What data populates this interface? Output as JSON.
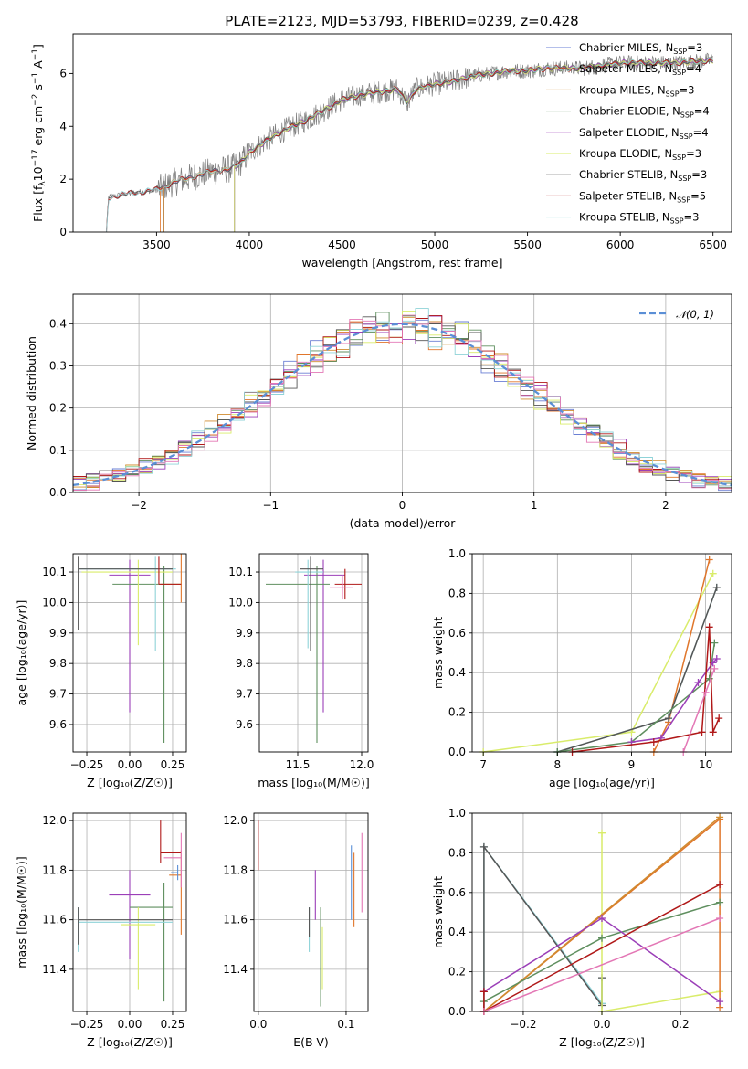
{
  "figure_title": "PLATE=2123, MJD=53793, FIBERID=0239, z=0.428",
  "colors": {
    "chabrier_miles": "#6a7fd4",
    "salpeter_miles": "#e0762b",
    "kroupa_miles": "#d08b2f",
    "chabrier_elodie": "#5f8f5f",
    "salpeter_elodie": "#9b3fb8",
    "kroupa_elodie": "#d9ec6a",
    "chabrier_stelib": "#555555",
    "salpeter_stelib": "#b01818",
    "kroupa_stelib": "#8fd3d8",
    "data": "#7f7f7f",
    "gauss": "#5b8fd6",
    "pink": "#e377b5",
    "orange2": "#ed7d31"
  },
  "chart_data": [
    {
      "id": "spectrum",
      "type": "line",
      "xlabel": "wavelength [Angstrom, rest frame]",
      "ylabel_parts": [
        "Flux [f",
        "λ",
        "10",
        "−17",
        " erg cm",
        "−2",
        " s",
        "−1",
        " A",
        "−1",
        "]"
      ],
      "xlim": [
        3050,
        6600
      ],
      "ylim": [
        0,
        7.5
      ],
      "xticks": [
        3500,
        4000,
        4500,
        5000,
        5500,
        6000,
        6500
      ],
      "yticks": [
        0,
        2,
        4,
        6
      ],
      "legend_position": "top-right",
      "legend": [
        {
          "label": "Chabrier MILES, N",
          "sub": "SSP",
          "suffix": "=3",
          "color_key": "chabrier_miles"
        },
        {
          "label": "Salpeter MILES, N",
          "sub": "SSP",
          "suffix": "=4",
          "color_key": "salpeter_miles"
        },
        {
          "label": "Kroupa MILES, N",
          "sub": "SSP",
          "suffix": "=3",
          "color_key": "kroupa_miles"
        },
        {
          "label": "Chabrier ELODIE, N",
          "sub": "SSP",
          "suffix": "=4",
          "color_key": "chabrier_elodie"
        },
        {
          "label": "Salpeter ELODIE, N",
          "sub": "SSP",
          "suffix": "=4",
          "color_key": "salpeter_elodie"
        },
        {
          "label": "Kroupa ELODIE, N",
          "sub": "SSP",
          "suffix": "=3",
          "color_key": "kroupa_elodie"
        },
        {
          "label": "Chabrier STELIB, N",
          "sub": "SSP",
          "suffix": "=3",
          "color_key": "chabrier_stelib"
        },
        {
          "label": "Salpeter STELIB, N",
          "sub": "SSP",
          "suffix": "=5",
          "color_key": "salpeter_stelib"
        },
        {
          "label": "Kroupa STELIB, N",
          "sub": "SSP",
          "suffix": "=3",
          "color_key": "kroupa_stelib"
        }
      ],
      "data_envelope": [
        [
          3230,
          0
        ],
        [
          3240,
          1.3
        ],
        [
          3300,
          1.4
        ],
        [
          3400,
          1.5
        ],
        [
          3500,
          1.6
        ],
        [
          3600,
          1.9
        ],
        [
          3700,
          2.1
        ],
        [
          3800,
          2.3
        ],
        [
          3900,
          2.4
        ],
        [
          3950,
          2.6
        ],
        [
          4000,
          3.0
        ],
        [
          4100,
          3.5
        ],
        [
          4200,
          3.9
        ],
        [
          4300,
          4.2
        ],
        [
          4400,
          4.6
        ],
        [
          4500,
          5.0
        ],
        [
          4600,
          5.2
        ],
        [
          4700,
          5.3
        ],
        [
          4800,
          5.4
        ],
        [
          4850,
          4.9
        ],
        [
          4900,
          5.4
        ],
        [
          5000,
          5.6
        ],
        [
          5100,
          5.7
        ],
        [
          5200,
          5.9
        ],
        [
          5300,
          6.0
        ],
        [
          5400,
          6.1
        ],
        [
          5500,
          6.1
        ],
        [
          5600,
          6.2
        ],
        [
          5700,
          6.2
        ],
        [
          5800,
          6.2
        ],
        [
          5900,
          6.3
        ],
        [
          6000,
          6.4
        ],
        [
          6100,
          6.4
        ],
        [
          6200,
          6.4
        ],
        [
          6300,
          6.4
        ],
        [
          6400,
          6.45
        ],
        [
          6500,
          6.5
        ]
      ]
    },
    {
      "id": "residuals",
      "type": "histogram",
      "xlabel": "(data-model)/error",
      "ylabel": "Normed distribution",
      "xlim": [
        -2.5,
        2.5
      ],
      "ylim": [
        0,
        0.47
      ],
      "xticks": [
        -2,
        -1,
        0,
        1,
        2
      ],
      "yticks": [
        0.0,
        0.1,
        0.2,
        0.3,
        0.4
      ],
      "legend_position": "top-right",
      "legend": [
        {
          "label": "𝒩(0, 1)",
          "color_key": "gauss",
          "style": "dashed"
        }
      ],
      "bin_width": 0.1,
      "mean": 0,
      "sigma": 1
    },
    {
      "id": "age_vs_Z",
      "type": "errorbar",
      "xlabel": "Z [log₁₀(Z/Z☉)]",
      "ylabel": "age  [log₁₀(age/yr)]",
      "xlim": [
        -0.33,
        0.33
      ],
      "ylim": [
        9.51,
        10.16
      ],
      "xticks": [
        -0.25,
        0.0,
        0.25
      ],
      "xticklabels": [
        "−0.25",
        "0.00",
        "0.25"
      ],
      "yticks": [
        9.6,
        9.7,
        9.8,
        9.9,
        10.0,
        10.1
      ],
      "points": [
        {
          "x": 0.0,
          "y": 10.09,
          "xerr": [
            0.12,
            0.12
          ],
          "yerr": [
            0.45,
            0.05
          ],
          "color_key": "salpeter_elodie"
        },
        {
          "x": 0.2,
          "y": 10.06,
          "xerr": [
            0.3,
            0.1
          ],
          "yerr": [
            0.52,
            0.06
          ],
          "color_key": "chabrier_elodie"
        },
        {
          "x": 0.05,
          "y": 10.1,
          "xerr": [
            0.33,
            0.2
          ],
          "yerr": [
            0.24,
            0.04
          ],
          "color_key": "kroupa_elodie"
        },
        {
          "x": 0.15,
          "y": 10.11,
          "xerr": [
            0.44,
            0.12
          ],
          "yerr": [
            0.27,
            0.04
          ],
          "color_key": "kroupa_stelib"
        },
        {
          "x": -0.3,
          "y": 10.11,
          "xerr": [
            0.0,
            0.55
          ],
          "yerr": [
            0.2,
            0.04
          ],
          "color_key": "chabrier_stelib"
        },
        {
          "x": 0.3,
          "y": 10.06,
          "xerr": [
            0.12,
            0.0
          ],
          "yerr": [
            0.06,
            0.1
          ],
          "color_key": "salpeter_miles"
        },
        {
          "x": 0.17,
          "y": 10.06,
          "xerr": [
            0.0,
            0.13
          ],
          "yerr": [
            0.0,
            0.09
          ],
          "color_key": "salpeter_stelib"
        }
      ]
    },
    {
      "id": "age_vs_mass",
      "type": "errorbar",
      "xlabel": "mass [log₁₀(M/M☉)]",
      "xlim": [
        11.2,
        12.05
      ],
      "ylim": [
        9.51,
        10.16
      ],
      "xticks": [
        11.5,
        12.0
      ],
      "xticklabels": [
        "11.5",
        "12.0"
      ],
      "yticks": [
        9.6,
        9.7,
        9.8,
        9.9,
        10.0,
        10.1
      ],
      "points": [
        {
          "x": 11.7,
          "y": 10.09,
          "xerr": [
            0.15,
            0.17
          ],
          "yerr": [
            0.45,
            0.05
          ],
          "color_key": "salpeter_elodie"
        },
        {
          "x": 11.65,
          "y": 10.06,
          "xerr": [
            0.4,
            0.1
          ],
          "yerr": [
            0.52,
            0.06
          ],
          "color_key": "chabrier_elodie"
        },
        {
          "x": 11.58,
          "y": 10.1,
          "xerr": [
            0.1,
            0.12
          ],
          "yerr": [
            0.25,
            0.04
          ],
          "color_key": "kroupa_stelib"
        },
        {
          "x": 11.6,
          "y": 10.11,
          "xerr": [
            0.08,
            0.1
          ],
          "yerr": [
            0.27,
            0.04
          ],
          "color_key": "chabrier_stelib"
        },
        {
          "x": 11.87,
          "y": 10.06,
          "xerr": [
            0.08,
            0.13
          ],
          "yerr": [
            0.05,
            0.05
          ],
          "color_key": "salpeter_stelib"
        },
        {
          "x": 11.85,
          "y": 10.05,
          "xerr": [
            0.1,
            0.08
          ],
          "yerr": [
            0.04,
            0.04
          ],
          "color_key": "pink"
        }
      ]
    },
    {
      "id": "weight_vs_age",
      "type": "line",
      "xlabel": "age  [log₁₀(age/yr)]",
      "ylabel": "mass weight",
      "xlim": [
        6.85,
        10.35
      ],
      "ylim": [
        0,
        1.0
      ],
      "xticks": [
        7,
        8,
        9,
        10
      ],
      "yticks": [
        0.0,
        0.2,
        0.4,
        0.6,
        0.8,
        1.0
      ],
      "series": [
        {
          "color_key": "kroupa_elodie",
          "x": [
            7.0,
            9.0,
            10.1
          ],
          "y": [
            0.0,
            0.1,
            0.9
          ]
        },
        {
          "color_key": "salpeter_miles",
          "x": [
            9.3,
            9.5,
            10.05
          ],
          "y": [
            0.0,
            0.15,
            0.97
          ]
        },
        {
          "color_key": "kroupa_stelib",
          "x": [
            8.0,
            9.5,
            10.15
          ],
          "y": [
            0.0,
            0.17,
            0.83
          ]
        },
        {
          "color_key": "chabrier_stelib",
          "x": [
            8.0,
            9.5,
            10.15
          ],
          "y": [
            0.0,
            0.17,
            0.83
          ]
        },
        {
          "color_key": "chabrier_elodie",
          "x": [
            8.0,
            9.0,
            10.05,
            10.12
          ],
          "y": [
            0.0,
            0.05,
            0.37,
            0.55
          ]
        },
        {
          "color_key": "salpeter_elodie",
          "x": [
            9.0,
            9.4,
            9.9,
            10.1,
            10.15
          ],
          "y": [
            0.05,
            0.07,
            0.35,
            0.45,
            0.47
          ]
        },
        {
          "color_key": "salpeter_stelib",
          "x": [
            8.2,
            9.3,
            9.95,
            10.05,
            10.1,
            10.18
          ],
          "y": [
            0.0,
            0.05,
            0.1,
            0.63,
            0.1,
            0.17
          ]
        },
        {
          "color_key": "pink",
          "x": [
            9.7,
            10.0,
            10.12
          ],
          "y": [
            0.0,
            0.3,
            0.42
          ]
        }
      ]
    },
    {
      "id": "mass_vs_Z",
      "type": "errorbar",
      "xlabel": "Z [log₁₀(Z/Z☉)]",
      "ylabel": "mass [log₁₀(M/M☉)]",
      "xlim": [
        -0.33,
        0.33
      ],
      "ylim": [
        11.23,
        12.03
      ],
      "xticks": [
        -0.25,
        0.0,
        0.25
      ],
      "xticklabels": [
        "−0.25",
        "0.00",
        "0.25"
      ],
      "yticks": [
        11.4,
        11.6,
        11.8,
        12.0
      ],
      "points": [
        {
          "x": 0.0,
          "y": 11.7,
          "xerr": [
            0.12,
            0.12
          ],
          "yerr": [
            0.26,
            0.1
          ],
          "color_key": "salpeter_elodie"
        },
        {
          "x": 0.2,
          "y": 11.65,
          "xerr": [
            0.2,
            0.05
          ],
          "yerr": [
            0.38,
            0.1
          ],
          "color_key": "chabrier_elodie"
        },
        {
          "x": 0.05,
          "y": 11.58,
          "xerr": [
            0.1,
            0.1
          ],
          "yerr": [
            0.26,
            0.07
          ],
          "color_key": "kroupa_elodie"
        },
        {
          "x": -0.3,
          "y": 11.59,
          "xerr": [
            0.0,
            0.55
          ],
          "yerr": [
            0.12,
            0.06
          ],
          "color_key": "kroupa_stelib"
        },
        {
          "x": -0.3,
          "y": 11.6,
          "xerr": [
            0.0,
            0.55
          ],
          "yerr": [
            0.1,
            0.05
          ],
          "color_key": "chabrier_stelib"
        },
        {
          "x": 0.3,
          "y": 11.78,
          "xerr": [
            0.07,
            0.0
          ],
          "yerr": [
            0.24,
            0.1
          ],
          "color_key": "salpeter_miles"
        },
        {
          "x": 0.18,
          "y": 11.87,
          "xerr": [
            0.0,
            0.12
          ],
          "yerr": [
            0.04,
            0.13
          ],
          "color_key": "salpeter_stelib"
        },
        {
          "x": 0.3,
          "y": 11.85,
          "xerr": [
            0.1,
            0.0
          ],
          "yerr": [
            0.12,
            0.1
          ],
          "color_key": "pink"
        },
        {
          "x": 0.28,
          "y": 11.79,
          "xerr": [
            0.04,
            0.0
          ],
          "yerr": [
            0.03,
            0.03
          ],
          "color_key": "gauss"
        }
      ]
    },
    {
      "id": "mass_vs_ebv",
      "type": "errorbar",
      "xlabel": "E(B-V)",
      "xlim": [
        -0.005,
        0.125
      ],
      "ylim": [
        11.23,
        12.03
      ],
      "xticks": [
        0.0,
        0.1
      ],
      "xticklabels": [
        "0.0",
        "0.1"
      ],
      "yticks": [
        11.4,
        11.6,
        11.8,
        12.0
      ],
      "points": [
        {
          "x": 0.0,
          "y": 11.9,
          "xerr": [
            0,
            0
          ],
          "yerr": [
            0.1,
            0.1
          ],
          "color_key": "salpeter_stelib"
        },
        {
          "x": 0.065,
          "y": 11.7,
          "xerr": [
            0,
            0
          ],
          "yerr": [
            0.1,
            0.1
          ],
          "color_key": "salpeter_elodie"
        },
        {
          "x": 0.058,
          "y": 11.57,
          "xerr": [
            0,
            0
          ],
          "yerr": [
            0.1,
            0.08
          ],
          "color_key": "kroupa_stelib"
        },
        {
          "x": 0.058,
          "y": 11.6,
          "xerr": [
            0,
            0
          ],
          "yerr": [
            0.07,
            0.05
          ],
          "color_key": "chabrier_stelib"
        },
        {
          "x": 0.071,
          "y": 11.45,
          "xerr": [
            0,
            0
          ],
          "yerr": [
            0.2,
            0.2
          ],
          "color_key": "chabrier_elodie"
        },
        {
          "x": 0.073,
          "y": 11.45,
          "xerr": [
            0,
            0
          ],
          "yerr": [
            0.13,
            0.12
          ],
          "color_key": "kroupa_elodie"
        },
        {
          "x": 0.106,
          "y": 11.75,
          "xerr": [
            0,
            0
          ],
          "yerr": [
            0.15,
            0.15
          ],
          "color_key": "gauss"
        },
        {
          "x": 0.109,
          "y": 11.72,
          "xerr": [
            0,
            0
          ],
          "yerr": [
            0.15,
            0.15
          ],
          "color_key": "salpeter_miles"
        },
        {
          "x": 0.118,
          "y": 11.8,
          "xerr": [
            0,
            0
          ],
          "yerr": [
            0.17,
            0.15
          ],
          "color_key": "pink"
        }
      ]
    },
    {
      "id": "weight_vs_Z",
      "type": "line",
      "xlabel": "Z [log₁₀(Z/Z☉)]",
      "ylabel": "mass weight",
      "xlim": [
        -0.33,
        0.33
      ],
      "ylim": [
        0,
        1.0
      ],
      "xticks": [
        -0.2,
        0.0,
        0.2
      ],
      "xticklabels": [
        "−0.2",
        "0.0",
        "0.2"
      ],
      "yticks": [
        0.0,
        0.2,
        0.4,
        0.6,
        0.8,
        1.0
      ],
      "series": [
        {
          "color_key": "kroupa_stelib",
          "x": [
            -0.3,
            -0.3,
            0.0,
            0.0
          ],
          "y": [
            0.0,
            0.83,
            0.04,
            0.17
          ]
        },
        {
          "color_key": "chabrier_stelib",
          "x": [
            -0.3,
            -0.3,
            0.0,
            0.0
          ],
          "y": [
            0.0,
            0.83,
            0.03,
            0.17
          ]
        },
        {
          "color_key": "kroupa_elodie",
          "x": [
            0.0,
            0.0,
            0.3
          ],
          "y": [
            0.9,
            0.0,
            0.1
          ]
        },
        {
          "color_key": "salpeter_miles",
          "x": [
            -0.3,
            0.3,
            0.3
          ],
          "y": [
            0.0,
            0.97,
            0.02
          ]
        },
        {
          "color_key": "kroupa_miles",
          "x": [
            -0.3,
            0.3
          ],
          "y": [
            0.0,
            0.98
          ]
        },
        {
          "color_key": "chabrier_elodie",
          "x": [
            -0.3,
            0.0,
            0.3
          ],
          "y": [
            0.05,
            0.37,
            0.55
          ]
        },
        {
          "color_key": "salpeter_elodie",
          "x": [
            -0.3,
            0.0,
            0.3
          ],
          "y": [
            0.1,
            0.47,
            0.05
          ]
        },
        {
          "color_key": "salpeter_stelib",
          "x": [
            -0.3,
            -0.3,
            0.3
          ],
          "y": [
            0.1,
            0.0,
            0.64
          ]
        },
        {
          "color_key": "pink",
          "x": [
            -0.3,
            0.3
          ],
          "y": [
            0.0,
            0.47
          ]
        }
      ]
    }
  ]
}
